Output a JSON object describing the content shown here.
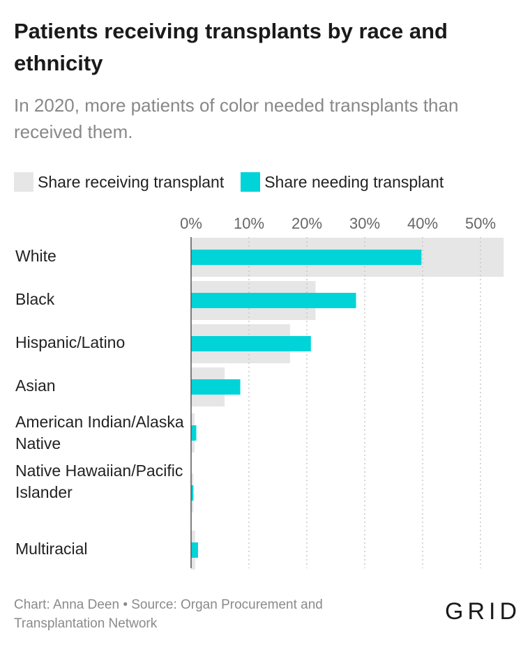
{
  "title": "Patients receiving transplants by race and ethnicity",
  "subtitle": "In 2020, more patients of color needed transplants than received them.",
  "footer": "Chart: Anna Deen • Source: Organ Procurement and Transplantation Network",
  "logo": "GRID",
  "colors": {
    "receiving": "#e6e6e6",
    "needing": "#00d4d8",
    "grid": "#c8c8c8",
    "axis": "#555555"
  },
  "chart_data": {
    "type": "bar",
    "orientation": "horizontal",
    "title": "Patients receiving transplants by race and ethnicity",
    "subtitle": "In 2020, more patients of color needed transplants than received them.",
    "categories": [
      "White",
      "Black",
      "Hispanic/Latino",
      "Asian",
      "American Indian/Alaska Native",
      "Native Hawaiian/Pacific Islander",
      "Multiracial"
    ],
    "series": [
      {
        "name": "Share receiving transplant",
        "values": [
          54.0,
          21.5,
          17.1,
          5.8,
          0.6,
          0.4,
          0.7
        ]
      },
      {
        "name": "Share needing transplant",
        "values": [
          39.8,
          28.5,
          20.7,
          8.5,
          0.9,
          0.4,
          1.2
        ]
      }
    ],
    "x_ticks": [
      "0%",
      "10%",
      "20%",
      "30%",
      "40%",
      "50%"
    ],
    "xlim": [
      0,
      54
    ],
    "grid": true,
    "legend_position": "top"
  }
}
